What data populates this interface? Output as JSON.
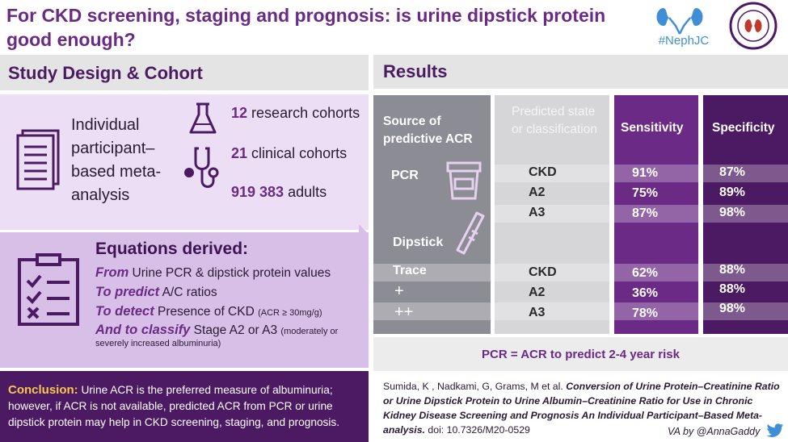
{
  "header": {
    "title": "For CKD screening, staging and prognosis:  is urine dipstick protein good enough?",
    "hashtag": "#NephJC"
  },
  "study": {
    "heading": "Study Design & Cohort",
    "design_text": "Individual participant–based meta-analysis",
    "cohorts": [
      {
        "count": "12",
        "label": "research cohorts"
      },
      {
        "count": "21",
        "label": "clinical cohorts"
      },
      {
        "count": "919 383",
        "label": "adults"
      }
    ]
  },
  "equations": {
    "heading": "Equations derived:",
    "lines": [
      {
        "lead": "From",
        "text": " Urine PCR  & dipstick protein values",
        "small": ""
      },
      {
        "lead": "To predict",
        "text": " A/C ratios",
        "small": ""
      },
      {
        "lead": "To detect",
        "text": " Presence of CKD ",
        "small": "(ACR ≥ 30mg/g)"
      },
      {
        "lead": "And to classify",
        "text": " Stage A2 or A3 ",
        "small": "(moderately or severely increased albuminuria)"
      }
    ]
  },
  "conclusion": {
    "label": "Conclusion:",
    "text": " Urine ACR is the preferred measure of albuminuria; however, if ACR is not available, predicted ACR from PCR or urine dipstick protein may help in CKD screening, staging, and prognosis."
  },
  "results": {
    "heading": "Results",
    "columns": {
      "source": "Source of predictive ACR",
      "predicted": "Predicted state or classification",
      "sensitivity": "Sensitivity",
      "specificity": "Specificity"
    },
    "pcr_label": "PCR",
    "dipstick_label": "Dipstick",
    "pcr_rows": [
      {
        "state": "CKD",
        "sens": "91%",
        "spec": "87%"
      },
      {
        "state": "A2",
        "sens": "75%",
        "spec": "89%"
      },
      {
        "state": "A3",
        "sens": "87%",
        "spec": "98%"
      }
    ],
    "dipstick_rows": [
      {
        "source": "Trace",
        "state": "CKD",
        "sens": "62%",
        "spec": "88%"
      },
      {
        "source": "+",
        "state": "A2",
        "sens": "36%",
        "spec": "88%"
      },
      {
        "source": "++",
        "state": "A3",
        "sens": "78%",
        "spec": "98%"
      }
    ],
    "note": "PCR = ACR to predict 2-4 year risk"
  },
  "citation": {
    "authors": "Sumida, K , Nadkami, G, Grams, M et al. ",
    "title": "Conversion of Urine Protein–Creatinine Ratio or Urine Dipstick Protein to Urine Albumin–Creatinine Ratio for Use in Chronic Kidney Disease Screening and Prognosis An Individual Participant–Based Meta-analysis.",
    "doi": " doi: 10.7326/M20-0529",
    "credit": "VA by @AnnaGaddy"
  },
  "colors": {
    "purple": "#6a2a86",
    "dark_purple": "#4b1a63",
    "lavender": "#ecdff5",
    "accent": "#f6c94b"
  }
}
